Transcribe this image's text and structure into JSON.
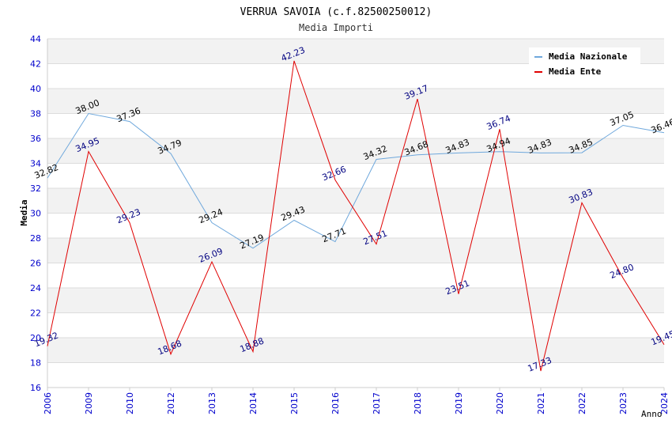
{
  "chart_data": {
    "type": "line",
    "title": "VERRUA SAVOIA (c.f.82500250012)",
    "subtitle": "Media Importi",
    "xlabel": "Anno",
    "ylabel": "Media",
    "categories": [
      "2006",
      "2009",
      "2010",
      "2012",
      "2013",
      "2014",
      "2015",
      "2016",
      "2017",
      "2018",
      "2019",
      "2020",
      "2021",
      "2022",
      "2023",
      "2024"
    ],
    "ylim": [
      16,
      44
    ],
    "yticks": [
      "16",
      "18",
      "20",
      "22",
      "24",
      "26",
      "28",
      "30",
      "32",
      "34",
      "36",
      "38",
      "40",
      "42",
      "44"
    ],
    "grid": "horizontal alternating bands",
    "legend_position": "top-right",
    "series": [
      {
        "name": "Media Nazionale",
        "color": "#6fa8dc",
        "label_color": "#000000",
        "values": [
          32.82,
          38.0,
          37.36,
          34.79,
          29.24,
          27.19,
          29.43,
          27.71,
          34.32,
          34.68,
          34.83,
          34.94,
          34.83,
          34.85,
          37.05,
          36.46
        ],
        "labels": [
          "32.82",
          "38.00",
          "37.36",
          "34.79",
          "29.24",
          "27.19",
          "29.43",
          "27.71",
          "34.32",
          "34.68",
          "34.83",
          "34.94",
          "34.83",
          "34.85",
          "37.05",
          "36.46"
        ]
      },
      {
        "name": "Media Ente",
        "color": "#e00000",
        "label_color": "#000080",
        "values": [
          19.32,
          34.95,
          29.23,
          18.68,
          26.09,
          18.88,
          42.23,
          32.66,
          27.51,
          39.17,
          23.51,
          36.74,
          17.33,
          30.83,
          24.8,
          19.45
        ],
        "labels": [
          "19.32",
          "34.95",
          "29.23",
          "18.68",
          "26.09",
          "18.88",
          "42.23",
          "32.66",
          "27.51",
          "39.17",
          "23.51",
          "36.74",
          "17.33",
          "30.83",
          "24.80",
          "19.45"
        ]
      }
    ]
  }
}
